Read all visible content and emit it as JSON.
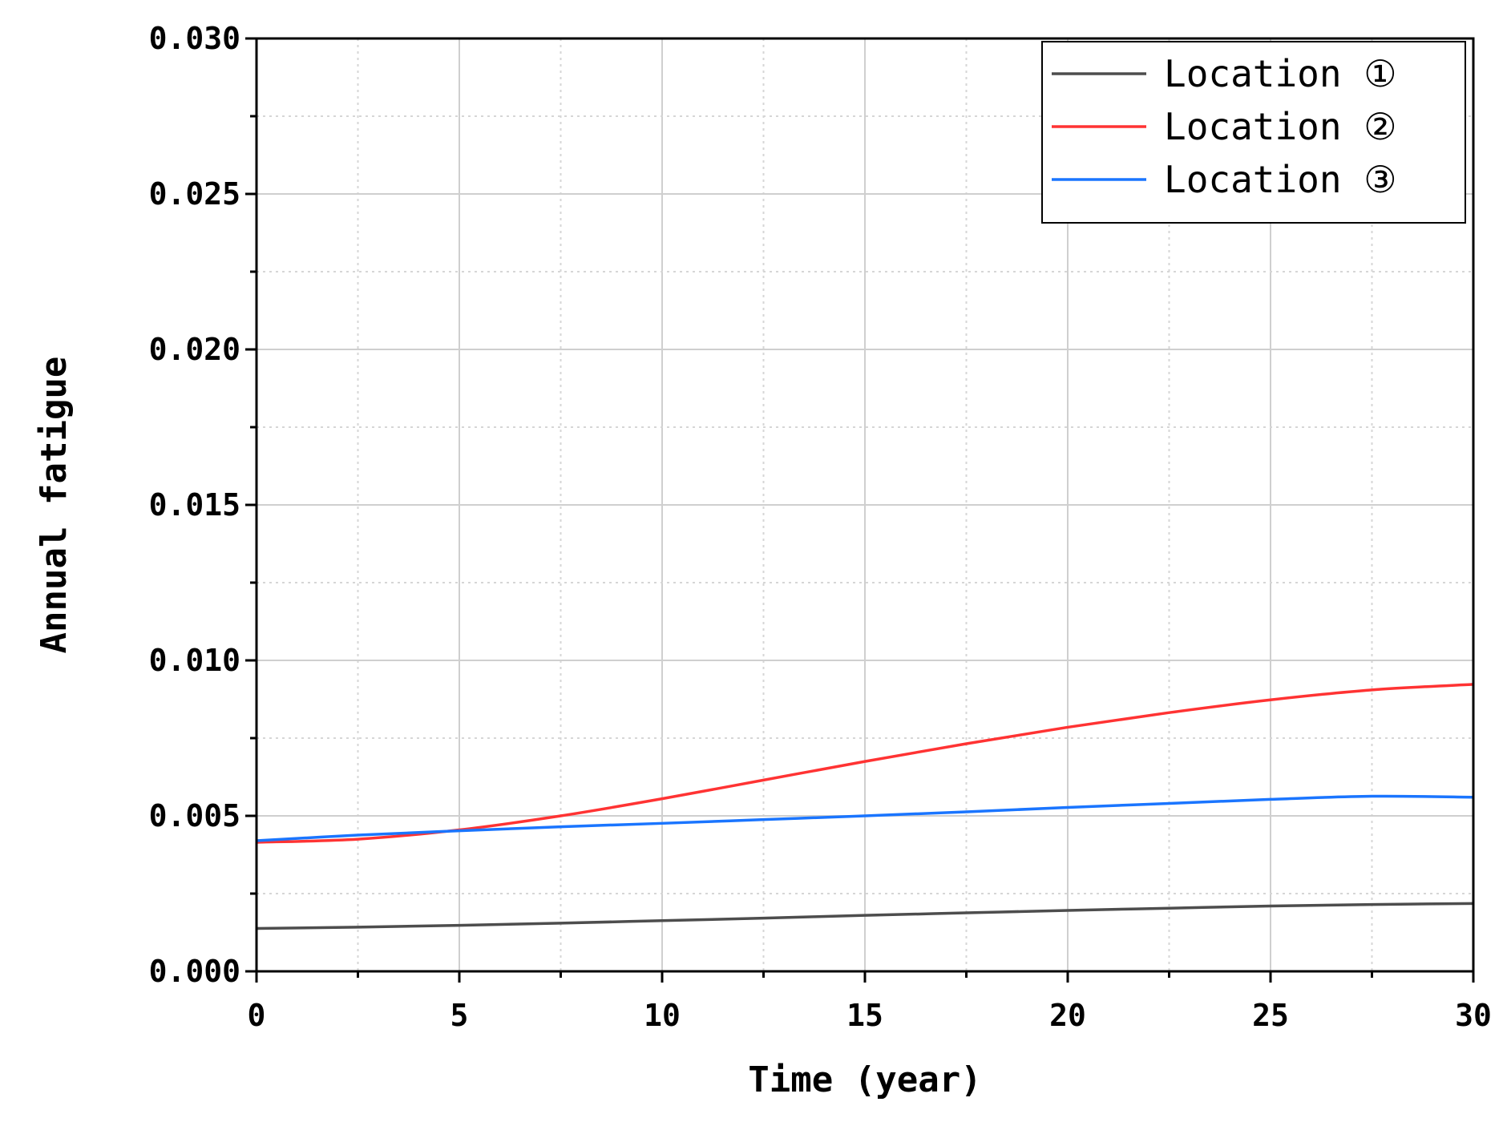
{
  "chart_data": {
    "type": "line",
    "title": "",
    "xlabel": "Time (year)",
    "ylabel": "Annual fatigue",
    "xlim": [
      0,
      30
    ],
    "ylim": [
      0,
      0.03
    ],
    "x_ticks": [
      "0",
      "5",
      "10",
      "15",
      "20",
      "25",
      "30"
    ],
    "y_ticks": [
      "0.000",
      "0.005",
      "0.010",
      "0.015",
      "0.020",
      "0.025",
      "0.030"
    ],
    "grid": true,
    "legend_position": "top-right",
    "x": [
      0,
      2.5,
      5,
      7.5,
      10,
      12.5,
      15,
      17.5,
      20,
      22.5,
      25,
      27.5,
      30
    ],
    "series": [
      {
        "name": "Location ①",
        "color": "#4d4d4d",
        "values": [
          0.00138,
          0.00142,
          0.00148,
          0.00155,
          0.00163,
          0.00171,
          0.0018,
          0.00188,
          0.00196,
          0.00203,
          0.0021,
          0.00215,
          0.00218
        ]
      },
      {
        "name": "Location ②",
        "color": "#ff3333",
        "values": [
          0.00415,
          0.00425,
          0.00455,
          0.005,
          0.00555,
          0.00615,
          0.00675,
          0.00732,
          0.00785,
          0.00832,
          0.00873,
          0.00905,
          0.00923
        ]
      },
      {
        "name": "Location ③",
        "color": "#1a75ff",
        "values": [
          0.0042,
          0.00438,
          0.00452,
          0.00465,
          0.00476,
          0.00488,
          0.005,
          0.00513,
          0.00527,
          0.0054,
          0.00553,
          0.00563,
          0.0056
        ]
      }
    ]
  }
}
